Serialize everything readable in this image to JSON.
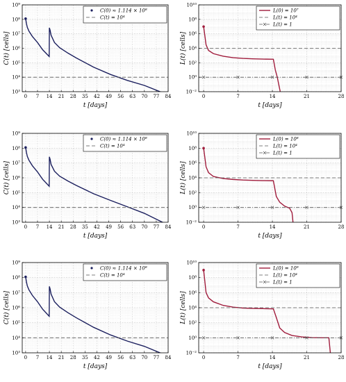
{
  "chart_data": [
    {
      "type": "line",
      "panel": "row1-left",
      "xlabel": "t [days]",
      "ylabel": "C(t) [cells]",
      "xlim": [
        -2,
        84
      ],
      "xticks": [
        0,
        7,
        14,
        21,
        28,
        35,
        42,
        49,
        56,
        63,
        70,
        77,
        84
      ],
      "yscale": "log",
      "ylim_exp": [
        3,
        9
      ],
      "ytick_exps": [
        3,
        4,
        5,
        6,
        7,
        8,
        9
      ],
      "grid": true,
      "legend_position": "top-right",
      "series": [
        {
          "name": "C(0) ≈ 1.114 × 10⁸",
          "color": "#1b1f5e",
          "style": "solid",
          "x": [
            0,
            0.5,
            1,
            2,
            4,
            7,
            10,
            13.9,
            14,
            14.4,
            15,
            17,
            20,
            25,
            30,
            40,
            50,
            60,
            70,
            84
          ],
          "y": [
            111400000.0,
            50000000.0,
            28000000.0,
            15000000.0,
            6500000.0,
            2500000.0,
            800000.0,
            270000.0,
            26000000.0,
            18000000.0,
            8000000.0,
            2500000.0,
            1100000.0,
            460000.0,
            210000.0,
            50000.0,
            15500.0,
            6000.0,
            2700.0,
            600.0
          ]
        },
        {
          "name": "C(t) = 10⁴",
          "color": "#555555",
          "style": "dashed",
          "x": [
            -2,
            84
          ],
          "y": [
            10000,
            10000
          ]
        }
      ]
    },
    {
      "type": "line",
      "panel": "row1-right",
      "xlabel": "t [days]",
      "ylabel": "L(t) [cells]",
      "xlim": [
        -1,
        28
      ],
      "xticks": [
        0,
        7,
        14,
        21,
        28
      ],
      "yscale": "log",
      "ylim_exp": [
        -2,
        10
      ],
      "ytick_exps": [
        -2,
        0,
        2,
        4,
        6,
        8,
        10
      ],
      "grid": true,
      "legend_position": "top-right",
      "series": [
        {
          "name": "L(0) = 10⁷",
          "color": "#a01c3c",
          "style": "solid",
          "x": [
            0,
            0.5,
            1,
            2,
            4,
            6,
            8,
            10,
            12,
            14.2,
            14.6,
            15,
            15.3,
            15.6
          ],
          "y": [
            10000000.0,
            30000.0,
            5000.0,
            1800.0,
            800.0,
            500.0,
            400.0,
            350.0,
            320.0,
            300.0,
            10,
            1,
            0.1,
            0.01
          ]
        },
        {
          "name": "L(t) = 10⁴",
          "color": "#555555",
          "style": "dashed",
          "x": [
            -1,
            28
          ],
          "y": [
            10000,
            10000
          ]
        },
        {
          "name": "L(t) = 1",
          "color": "#555555",
          "style": "dashdot",
          "marker": "x",
          "x": [
            -1,
            28
          ],
          "y": [
            1,
            1
          ]
        }
      ]
    },
    {
      "type": "line",
      "panel": "row2-left",
      "xlabel": "t [days]",
      "ylabel": "C(t) [cells]",
      "xlim": [
        -2,
        84
      ],
      "xticks": [
        0,
        7,
        14,
        21,
        28,
        35,
        42,
        49,
        56,
        63,
        70,
        77,
        84
      ],
      "yscale": "log",
      "ylim_exp": [
        3,
        9
      ],
      "ytick_exps": [
        3,
        4,
        5,
        6,
        7,
        8,
        9
      ],
      "grid": true,
      "legend_position": "top-right",
      "series": [
        {
          "name": "C(0) ≈ 1.114 × 10⁸",
          "color": "#1b1f5e",
          "style": "solid",
          "x": [
            0,
            0.5,
            1,
            2,
            4,
            7,
            10,
            13.9,
            14,
            14.4,
            15,
            17,
            20,
            25,
            30,
            40,
            50,
            60,
            70,
            84
          ],
          "y": [
            111400000.0,
            50000000.0,
            28000000.0,
            15000000.0,
            6500000.0,
            2500000.0,
            800000.0,
            270000.0,
            26000000.0,
            18000000.0,
            8000000.0,
            2800000.0,
            1300000.0,
            600000.0,
            300000.0,
            85000.0,
            30000.0,
            11000.0,
            4000.0,
            650.0
          ]
        },
        {
          "name": "C(t) = 10⁴",
          "color": "#555555",
          "style": "dashed",
          "x": [
            -2,
            84
          ],
          "y": [
            10000,
            10000
          ]
        }
      ]
    },
    {
      "type": "line",
      "panel": "row2-right",
      "xlabel": "t [days]",
      "ylabel": "L(t) [cells]",
      "xlim": [
        -1,
        28
      ],
      "xticks": [
        0,
        7,
        14,
        21,
        28
      ],
      "yscale": "log",
      "ylim_exp": [
        -2,
        10
      ],
      "ytick_exps": [
        -2,
        0,
        2,
        4,
        6,
        8,
        10
      ],
      "grid": true,
      "legend_position": "top-right",
      "series": [
        {
          "name": "L(0) = 10⁸",
          "color": "#a01c3c",
          "style": "solid",
          "x": [
            0,
            0.5,
            1,
            2,
            4,
            6,
            8,
            10,
            12,
            14.2,
            14.8,
            15.5,
            16.5,
            17.5,
            18,
            18.2
          ],
          "y": [
            100000000.0,
            300000.0,
            50000.0,
            15000.0,
            8000.0,
            6000.0,
            5000.0,
            4500.0,
            4200.0,
            4000.0,
            30,
            5,
            1.5,
            0.8,
            0.2,
            0.01
          ]
        },
        {
          "name": "L(t) = 10⁴",
          "color": "#555555",
          "style": "dashed",
          "x": [
            -1,
            28
          ],
          "y": [
            10000,
            10000
          ]
        },
        {
          "name": "L(t) = 1",
          "color": "#555555",
          "style": "dashdot",
          "marker": "x",
          "x": [
            -1,
            28
          ],
          "y": [
            1,
            1
          ]
        }
      ]
    },
    {
      "type": "line",
      "panel": "row3-left",
      "xlabel": "t [days]",
      "ylabel": "C(t) [cells]",
      "xlim": [
        -2,
        84
      ],
      "xticks": [
        0,
        7,
        14,
        21,
        28,
        35,
        42,
        49,
        56,
        63,
        70,
        77,
        84
      ],
      "yscale": "log",
      "ylim_exp": [
        3,
        9
      ],
      "ytick_exps": [
        3,
        4,
        5,
        6,
        7,
        8,
        9
      ],
      "grid": true,
      "legend_position": "top-right",
      "series": [
        {
          "name": "C(0) ≈ 1.114 × 10⁸",
          "color": "#1b1f5e",
          "style": "solid",
          "x": [
            0,
            0.5,
            1,
            2,
            4,
            7,
            10,
            13.9,
            14,
            14.4,
            15,
            17,
            20,
            25,
            30,
            40,
            50,
            60,
            70,
            84
          ],
          "y": [
            111400000.0,
            50000000.0,
            28000000.0,
            15000000.0,
            6500000.0,
            2500000.0,
            800000.0,
            270000.0,
            26000000.0,
            18000000.0,
            8000000.0,
            2500000.0,
            1100000.0,
            460000.0,
            210000.0,
            50000.0,
            15500.0,
            6000.0,
            2700.0,
            600.0
          ]
        },
        {
          "name": "C(t) = 10⁴",
          "color": "#555555",
          "style": "dashed",
          "x": [
            -2,
            84
          ],
          "y": [
            10000,
            10000
          ]
        }
      ]
    },
    {
      "type": "line",
      "panel": "row3-right",
      "xlabel": "t [days]",
      "ylabel": "L(t) [cells]",
      "xlim": [
        -1,
        28
      ],
      "xticks": [
        0,
        7,
        14,
        21,
        28
      ],
      "yscale": "log",
      "ylim_exp": [
        -2,
        10
      ],
      "ytick_exps": [
        -2,
        0,
        2,
        4,
        6,
        8,
        10
      ],
      "grid": true,
      "legend_position": "top-right",
      "series": [
        {
          "name": "L(0) = 10⁹",
          "color": "#a01c3c",
          "style": "solid",
          "x": [
            0,
            0.5,
            1,
            2,
            4,
            6,
            8,
            10,
            12,
            14.2,
            14.8,
            15.5,
            16.5,
            18,
            20,
            22,
            24,
            25.5,
            25.8
          ],
          "y": [
            1000000000.0,
            1000000.0,
            200000.0,
            60000.0,
            20000.0,
            12000.0,
            9000.0,
            8000.0,
            7500.0,
            7000.0,
            500,
            20,
            5,
            2,
            1.3,
            1.05,
            1.0,
            1.0,
            0.01
          ]
        },
        {
          "name": "L(t) = 10⁴",
          "color": "#555555",
          "style": "dashed",
          "x": [
            -1,
            28
          ],
          "y": [
            10000,
            10000
          ]
        },
        {
          "name": "L(t) = 1",
          "color": "#555555",
          "style": "dashdot",
          "marker": "x",
          "x": [
            -1,
            28
          ],
          "y": [
            1,
            1
          ]
        }
      ]
    }
  ]
}
